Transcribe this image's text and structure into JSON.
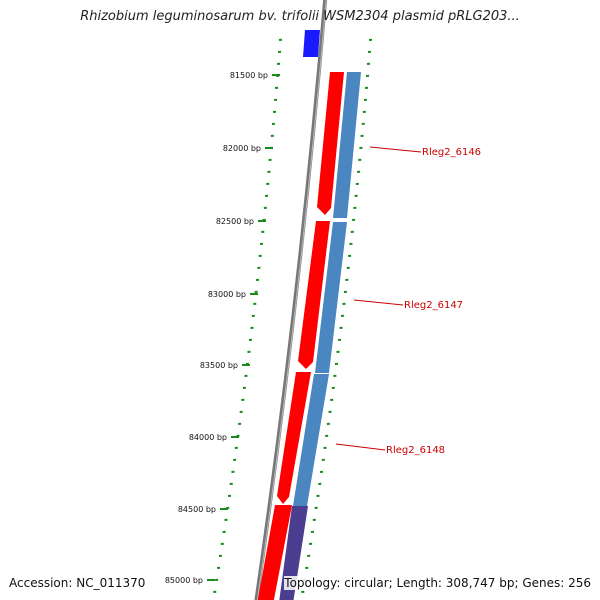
{
  "title": "Rhizobium leguminosarum bv. trifolii WSM2304 plasmid pRLG203...",
  "accession": "Accession: NC_011370",
  "summary": "Topology: circular; Length: 308,747 bp; Genes: 256",
  "colors": {
    "forward_cds": "#ff0000",
    "reverse_cds": "#4a86c0",
    "backbone": "#888888",
    "tick": "#1a8a1a",
    "gene_label": "#cc0000",
    "top_feature": "#1a1aff",
    "bottom_feature": "#4b3d8f"
  },
  "scale_ticks": [
    {
      "label": "81500 bp"
    },
    {
      "label": "82000 bp"
    },
    {
      "label": "82500 bp"
    },
    {
      "label": "83000 bp"
    },
    {
      "label": "83500 bp"
    },
    {
      "label": "84000 bp"
    },
    {
      "label": "84500 bp"
    },
    {
      "label": "85000 bp"
    }
  ],
  "genes": [
    {
      "name": "Rleg2_6146"
    },
    {
      "name": "Rleg2_6147"
    },
    {
      "name": "Rleg2_6148"
    }
  ]
}
